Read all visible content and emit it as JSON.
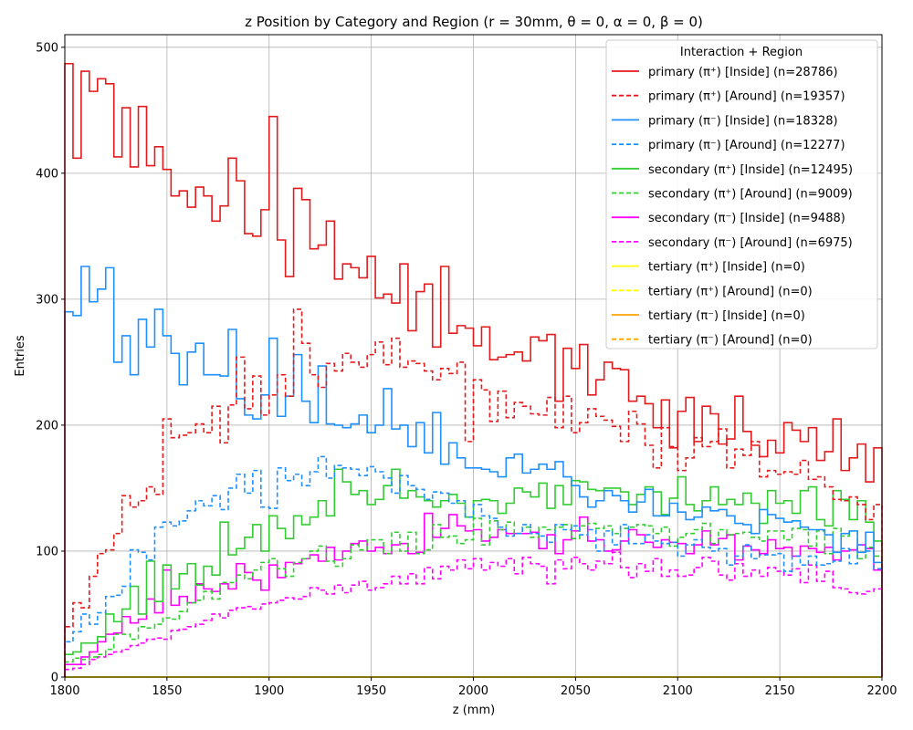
{
  "chart_data": {
    "type": "line",
    "title": "z Position by Category and Region (r = 30mm, θ = 0, α = 0, β = 0)",
    "xlabel": "z (mm)",
    "ylabel": "Entries",
    "xlim": [
      1800,
      2200
    ],
    "ylim": [
      0,
      510
    ],
    "grid": true,
    "x_ticks": [
      1800,
      1850,
      1900,
      1950,
      2000,
      2050,
      2100,
      2150,
      2200
    ],
    "y_ticks": [
      0,
      100,
      200,
      300,
      400,
      500
    ],
    "bin_width": 4,
    "legend": {
      "title": "Interaction + Region",
      "placement": "top-right"
    },
    "series": [
      {
        "name": "primary (π⁺) [Inside] (n=28786)",
        "color": "#e41a1c",
        "dashed": false,
        "values": [
          487,
          412,
          481,
          465,
          475,
          471,
          413,
          452,
          405,
          453,
          406,
          421,
          403,
          382,
          386,
          373,
          389,
          382,
          362,
          374,
          412,
          394,
          352,
          350,
          371,
          445,
          347,
          318,
          388,
          379,
          340,
          343,
          362,
          316,
          328,
          325,
          317,
          334,
          301,
          304,
          297,
          328,
          275,
          306,
          312,
          262,
          326,
          273,
          279,
          277,
          263,
          278,
          252,
          254,
          256,
          258,
          251,
          270,
          267,
          272,
          219,
          261,
          245,
          264,
          224,
          236,
          250,
          245,
          244,
          219,
          223,
          217,
          198,
          220,
          182,
          211,
          222,
          187,
          215,
          209,
          185,
          189,
          223,
          195,
          184,
          175,
          188,
          178,
          202,
          196,
          187,
          198,
          172,
          179,
          205,
          164,
          174,
          185,
          155,
          182
        ]
      },
      {
        "name": "primary (π⁺) [Around] (n=19357)",
        "color": "#e41a1c",
        "dashed": true,
        "values": [
          40,
          59,
          55,
          80,
          98,
          101,
          114,
          144,
          135,
          140,
          151,
          145,
          205,
          190,
          192,
          194,
          201,
          194,
          215,
          186,
          216,
          254,
          213,
          239,
          208,
          224,
          240,
          223,
          292,
          265,
          240,
          230,
          249,
          243,
          257,
          250,
          246,
          256,
          266,
          248,
          269,
          246,
          251,
          249,
          243,
          236,
          245,
          241,
          250,
          187,
          236,
          228,
          203,
          227,
          206,
          218,
          215,
          209,
          208,
          222,
          198,
          223,
          194,
          202,
          213,
          207,
          204,
          199,
          187,
          211,
          201,
          184,
          166,
          198,
          183,
          164,
          174,
          190,
          183,
          187,
          197,
          166,
          181,
          176,
          187,
          159,
          164,
          161,
          163,
          161,
          172,
          157,
          159,
          151,
          141,
          140,
          143,
          137,
          125,
          137
        ]
      },
      {
        "name": "primary (π⁻) [Inside] (n=18328)",
        "color": "#1e90ff",
        "dashed": false,
        "values": [
          290,
          287,
          326,
          298,
          308,
          325,
          250,
          271,
          240,
          284,
          262,
          292,
          271,
          257,
          232,
          258,
          265,
          240,
          240,
          239,
          276,
          221,
          208,
          205,
          224,
          269,
          207,
          223,
          256,
          219,
          202,
          247,
          201,
          200,
          198,
          201,
          208,
          194,
          200,
          229,
          197,
          200,
          183,
          202,
          178,
          210,
          169,
          186,
          174,
          166,
          166,
          165,
          163,
          159,
          174,
          177,
          162,
          165,
          169,
          165,
          171,
          159,
          152,
          143,
          135,
          140,
          148,
          144,
          140,
          131,
          139,
          149,
          128,
          128,
          138,
          131,
          125,
          127,
          135,
          132,
          133,
          128,
          122,
          121,
          114,
          133,
          129,
          126,
          123,
          124,
          119,
          117,
          117,
          113,
          99,
          114,
          116,
          99,
          115,
          91
        ]
      },
      {
        "name": "primary (π⁻) [Around] (n=12277)",
        "color": "#1e90ff",
        "dashed": true,
        "values": [
          28,
          36,
          50,
          42,
          51,
          64,
          65,
          72,
          101,
          99,
          93,
          119,
          123,
          120,
          124,
          132,
          140,
          136,
          144,
          133,
          150,
          161,
          146,
          164,
          135,
          134,
          166,
          156,
          161,
          152,
          163,
          175,
          158,
          168,
          166,
          165,
          160,
          167,
          163,
          158,
          146,
          160,
          152,
          149,
          141,
          147,
          146,
          138,
          140,
          127,
          137,
          128,
          126,
          119,
          112,
          114,
          121,
          114,
          112,
          107,
          121,
          117,
          120,
          113,
          117,
          100,
          116,
          105,
          121,
          106,
          106,
          113,
          108,
          106,
          107,
          96,
          105,
          109,
          103,
          100,
          102,
          89,
          96,
          105,
          94,
          97,
          97,
          98,
          84,
          96,
          89,
          96,
          89,
          90,
          92,
          102,
          90,
          105,
          100,
          86
        ]
      },
      {
        "name": "secondary (π⁺) [Inside] (n=12495)",
        "color": "#32cd32",
        "dashed": false,
        "values": [
          18,
          20,
          27,
          27,
          32,
          50,
          44,
          54,
          72,
          50,
          92,
          60,
          89,
          70,
          82,
          90,
          73,
          88,
          81,
          123,
          97,
          102,
          111,
          121,
          100,
          128,
          118,
          110,
          128,
          121,
          127,
          140,
          128,
          165,
          155,
          145,
          148,
          137,
          141,
          152,
          165,
          142,
          148,
          143,
          140,
          135,
          140,
          145,
          138,
          127,
          140,
          141,
          140,
          130,
          138,
          150,
          147,
          143,
          154,
          134,
          152,
          137,
          156,
          155,
          149,
          148,
          150,
          150,
          147,
          137,
          145,
          151,
          147,
          129,
          142,
          159,
          137,
          132,
          140,
          151,
          137,
          141,
          137,
          146,
          138,
          122,
          148,
          138,
          140,
          130,
          148,
          151,
          125,
          120,
          148,
          141,
          125,
          140,
          123,
          108
        ]
      },
      {
        "name": "secondary (π⁺) [Around] (n=9009)",
        "color": "#32cd32",
        "dashed": true,
        "values": [
          12,
          15,
          14,
          16,
          18,
          22,
          34,
          34,
          30,
          40,
          39,
          42,
          47,
          46,
          52,
          59,
          61,
          68,
          62,
          75,
          75,
          81,
          78,
          85,
          91,
          94,
          86,
          80,
          91,
          94,
          100,
          104,
          92,
          88,
          94,
          105,
          101,
          109,
          109,
          98,
          115,
          100,
          115,
          98,
          101,
          121,
          111,
          112,
          106,
          109,
          126,
          105,
          124,
          117,
          123,
          114,
          119,
          111,
          119,
          117,
          119,
          121,
          110,
          120,
          122,
          118,
          120,
          114,
          118,
          119,
          121,
          120,
          114,
          119,
          104,
          111,
          114,
          117,
          122,
          106,
          117,
          113,
          114,
          115,
          111,
          108,
          116,
          116,
          109,
          118,
          117,
          104,
          116,
          98,
          118,
          112,
          116,
          94,
          103,
          96
        ]
      },
      {
        "name": "secondary (π⁻) [Inside] (n=9488)",
        "color": "#ff00ff",
        "dashed": false,
        "values": [
          10,
          10,
          16,
          20,
          28,
          34,
          35,
          48,
          43,
          46,
          62,
          51,
          85,
          57,
          64,
          59,
          74,
          70,
          68,
          74,
          70,
          90,
          83,
          77,
          69,
          89,
          79,
          91,
          90,
          94,
          97,
          92,
          103,
          93,
          100,
          106,
          108,
          100,
          103,
          98,
          105,
          106,
          98,
          99,
          130,
          111,
          118,
          129,
          120,
          116,
          117,
          108,
          111,
          117,
          114,
          114,
          114,
          115,
          102,
          113,
          98,
          109,
          116,
          127,
          108,
          109,
          100,
          101,
          108,
          117,
          113,
          107,
          103,
          109,
          107,
          106,
          98,
          105,
          116,
          105,
          110,
          113,
          93,
          104,
          101,
          98,
          109,
          102,
          103,
          96,
          104,
          102,
          99,
          103,
          93,
          100,
          101,
          105,
          102,
          85
        ]
      },
      {
        "name": "secondary (π⁻) [Around] (n=6975)",
        "color": "#ff00ff",
        "dashed": true,
        "values": [
          6,
          7,
          10,
          14,
          16,
          18,
          20,
          22,
          25,
          27,
          30,
          31,
          30,
          37,
          38,
          40,
          42,
          45,
          50,
          47,
          53,
          55,
          56,
          54,
          58,
          59,
          61,
          63,
          62,
          64,
          71,
          69,
          66,
          73,
          67,
          73,
          76,
          69,
          71,
          74,
          80,
          74,
          82,
          74,
          87,
          78,
          88,
          85,
          93,
          86,
          94,
          85,
          91,
          88,
          94,
          82,
          95,
          90,
          88,
          74,
          93,
          86,
          95,
          90,
          85,
          92,
          90,
          99,
          87,
          79,
          90,
          84,
          94,
          80,
          85,
          80,
          81,
          87,
          95,
          92,
          81,
          77,
          90,
          80,
          85,
          80,
          87,
          84,
          81,
          86,
          75,
          89,
          76,
          84,
          71,
          70,
          67,
          66,
          68,
          70
        ]
      },
      {
        "name": "tertiary (π⁺) [Inside] (n=0)",
        "color": "#ffff00",
        "dashed": false,
        "values": [
          0
        ]
      },
      {
        "name": "tertiary (π⁺) [Around] (n=0)",
        "color": "#ffff00",
        "dashed": true,
        "values": [
          0
        ]
      },
      {
        "name": "tertiary (π⁻) [Inside] (n=0)",
        "color": "#ffa500",
        "dashed": false,
        "values": [
          0
        ]
      },
      {
        "name": "tertiary (π⁻) [Around] (n=0)",
        "color": "#ffa500",
        "dashed": true,
        "values": [
          0
        ]
      }
    ]
  }
}
